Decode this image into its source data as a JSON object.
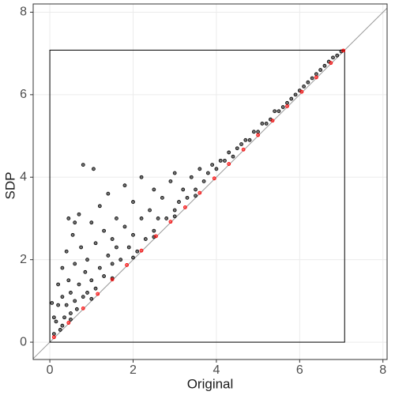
{
  "chart_data": {
    "type": "scatter",
    "x_label": "Original",
    "y_label": "SDP",
    "xlim": [
      -0.4,
      8.1
    ],
    "ylim": [
      -0.42,
      8.2
    ],
    "xticks": [
      0,
      2,
      4,
      6,
      8
    ],
    "yticks": [
      0,
      2,
      4,
      6,
      8
    ],
    "grid": true,
    "reference_box": [
      0,
      7.08
    ],
    "series": [
      {
        "color": "#000000",
        "x": [
          0.1,
          0.15,
          0.2,
          0.2,
          0.25,
          0.3,
          0.3,
          0.35,
          0.4,
          0.4,
          0.45,
          0.5,
          0.5,
          0.55,
          0.6,
          0.6,
          0.65,
          0.7,
          0.7,
          0.75,
          0.8,
          0.8,
          0.85,
          0.9,
          0.9,
          1.0,
          1.0,
          1.05,
          1.1,
          1.1,
          1.2,
          1.2,
          1.3,
          1.3,
          1.4,
          1.4,
          1.5,
          1.5,
          1.6,
          1.6,
          1.7,
          1.8,
          1.8,
          1.9,
          2.0,
          2.0,
          2.1,
          2.2,
          2.2,
          2.3,
          2.4,
          2.5,
          2.5,
          2.6,
          2.7,
          2.8,
          2.9,
          3.0,
          3.0,
          3.1,
          3.2,
          3.3,
          3.4,
          3.5,
          3.6,
          3.7,
          3.8,
          3.9,
          4.0,
          4.1,
          4.2,
          4.3,
          4.4,
          4.5,
          4.6,
          4.7,
          4.8,
          4.9,
          5.0,
          5.1,
          5.2,
          5.3,
          5.4,
          5.5,
          5.6,
          5.7,
          5.8,
          5.9,
          6.0,
          6.1,
          6.2,
          6.3,
          6.4,
          6.5,
          6.6,
          6.7,
          6.8,
          6.9,
          7.0,
          0.05,
          0.1,
          0.3,
          0.5,
          1.0,
          1.5,
          2.0,
          2.5,
          3.0,
          3.5,
          0.45,
          0.6
        ],
        "y": [
          0.2,
          0.5,
          0.9,
          1.4,
          0.3,
          1.1,
          1.8,
          0.6,
          2.2,
          0.9,
          1.5,
          0.7,
          1.2,
          2.6,
          1.0,
          1.9,
          0.8,
          3.1,
          1.4,
          2.3,
          1.1,
          4.3,
          1.7,
          2.0,
          1.2,
          2.9,
          1.5,
          4.2,
          1.3,
          2.4,
          1.8,
          3.3,
          1.6,
          2.7,
          2.1,
          3.6,
          1.9,
          2.5,
          2.3,
          3.0,
          2.0,
          2.8,
          3.8,
          2.3,
          2.6,
          3.4,
          2.2,
          3.0,
          4.0,
          2.5,
          3.2,
          2.7,
          3.7,
          3.0,
          3.5,
          3.0,
          3.9,
          3.2,
          4.1,
          3.4,
          3.7,
          3.5,
          4.0,
          3.7,
          4.2,
          3.9,
          4.1,
          4.3,
          4.2,
          4.4,
          4.4,
          4.6,
          4.5,
          4.7,
          4.8,
          4.9,
          4.9,
          5.1,
          5.1,
          5.3,
          5.3,
          5.4,
          5.6,
          5.6,
          5.7,
          5.8,
          5.9,
          6.0,
          6.1,
          6.2,
          6.3,
          6.4,
          6.5,
          6.6,
          6.7,
          6.8,
          6.9,
          6.95,
          7.05,
          0.95,
          0.6,
          0.4,
          0.55,
          1.05,
          1.55,
          2.05,
          2.55,
          3.05,
          3.55,
          3.0,
          2.9
        ]
      },
      {
        "color": "#ff0000",
        "x": [
          0.1,
          0.45,
          0.8,
          1.15,
          1.5,
          1.85,
          2.2,
          2.55,
          2.9,
          3.25,
          3.6,
          3.95,
          4.3,
          4.65,
          5.0,
          5.35,
          5.7,
          6.05,
          6.4,
          6.75,
          7.05
        ],
        "y": [
          0.12,
          0.47,
          0.82,
          1.17,
          1.52,
          1.87,
          2.22,
          2.57,
          2.92,
          3.27,
          3.62,
          3.97,
          4.32,
          4.67,
          5.02,
          5.37,
          5.72,
          6.07,
          6.42,
          6.77,
          7.07
        ]
      }
    ]
  }
}
